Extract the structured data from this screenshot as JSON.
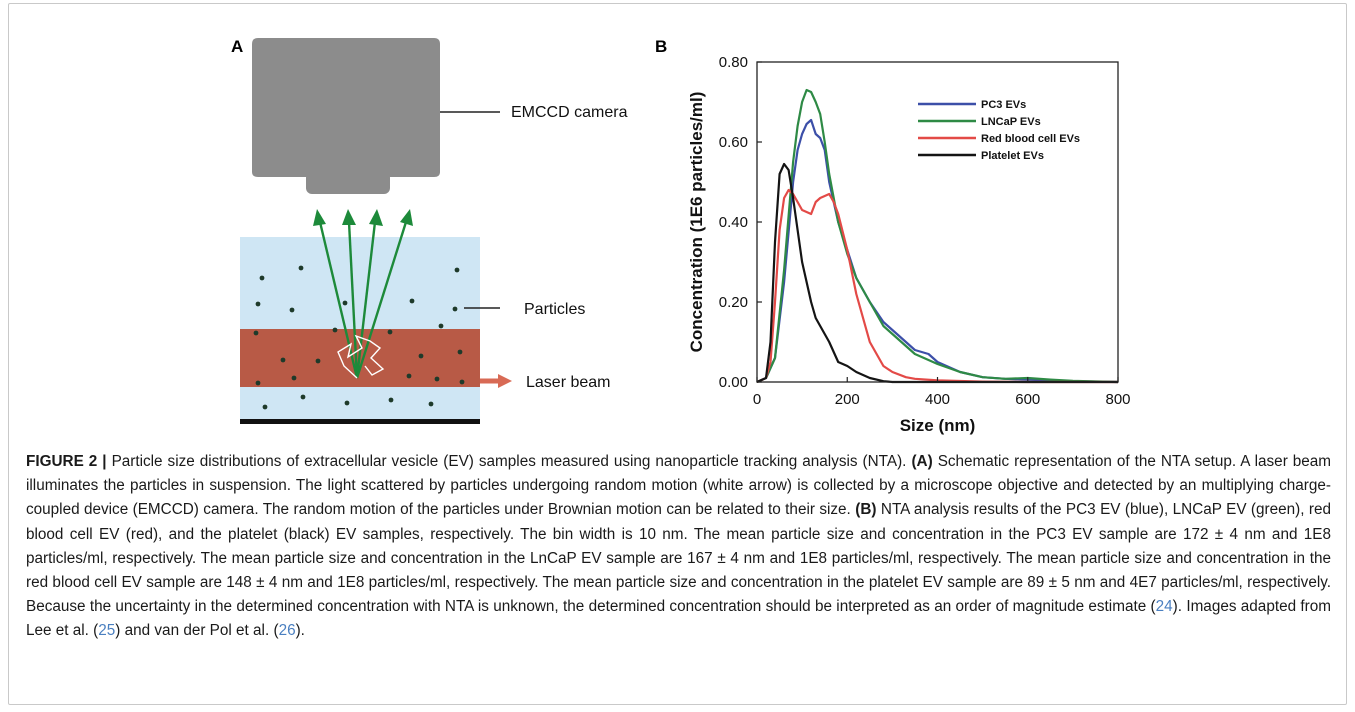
{
  "panel_a": {
    "label": "A",
    "camera_label": "EMCCD camera",
    "particles_label": "Particles",
    "laser_label": "Laser beam",
    "colors": {
      "medium": "#cfe6f4",
      "beam": "#b85a46",
      "arrow": "#1d8a3a",
      "camera": "#8c8c8c",
      "laser_arrow": "#d86a55"
    }
  },
  "panel_b": {
    "label": "B"
  },
  "chart_data": {
    "type": "line",
    "title": "",
    "xlabel": "Size (nm)",
    "ylabel": "Concentration (1E6 particles/ml)",
    "xlim": [
      0,
      800
    ],
    "ylim": [
      0,
      0.8
    ],
    "xticks": [
      "0",
      "200",
      "400",
      "600",
      "800"
    ],
    "yticks": [
      "0.00",
      "0.20",
      "0.40",
      "0.60",
      "0.80"
    ],
    "legend": "top-right",
    "series": [
      {
        "name": "PC3 EVs",
        "color": "#3c4fa8",
        "x": [
          0,
          20,
          40,
          60,
          80,
          90,
          100,
          110,
          120,
          130,
          140,
          150,
          160,
          180,
          200,
          220,
          250,
          280,
          300,
          330,
          350,
          380,
          400,
          450,
          500,
          550,
          600,
          650,
          700,
          800
        ],
        "y": [
          0,
          0.01,
          0.06,
          0.25,
          0.5,
          0.58,
          0.62,
          0.645,
          0.655,
          0.62,
          0.61,
          0.58,
          0.5,
          0.4,
          0.33,
          0.26,
          0.2,
          0.15,
          0.13,
          0.1,
          0.08,
          0.07,
          0.05,
          0.025,
          0.012,
          0.008,
          0.006,
          0.004,
          0.002,
          0
        ]
      },
      {
        "name": "LNCaP EVs",
        "color": "#2e8a45",
        "x": [
          0,
          20,
          40,
          60,
          80,
          90,
          100,
          110,
          120,
          130,
          140,
          150,
          160,
          180,
          200,
          220,
          250,
          280,
          300,
          330,
          350,
          380,
          400,
          450,
          500,
          550,
          600,
          650,
          700,
          800
        ],
        "y": [
          0,
          0.01,
          0.06,
          0.28,
          0.55,
          0.64,
          0.7,
          0.73,
          0.725,
          0.7,
          0.67,
          0.6,
          0.52,
          0.4,
          0.32,
          0.26,
          0.2,
          0.14,
          0.12,
          0.09,
          0.07,
          0.055,
          0.045,
          0.025,
          0.012,
          0.008,
          0.01,
          0.006,
          0.003,
          0
        ]
      },
      {
        "name": "Red blood cell EVs",
        "color": "#e34a47",
        "x": [
          0,
          20,
          30,
          40,
          50,
          60,
          70,
          80,
          100,
          120,
          130,
          140,
          160,
          170,
          180,
          200,
          220,
          250,
          280,
          300,
          330,
          350,
          400,
          500,
          600,
          800
        ],
        "y": [
          0,
          0.01,
          0.05,
          0.2,
          0.38,
          0.46,
          0.48,
          0.47,
          0.43,
          0.42,
          0.45,
          0.46,
          0.47,
          0.45,
          0.42,
          0.33,
          0.22,
          0.1,
          0.04,
          0.025,
          0.012,
          0.008,
          0.004,
          0.001,
          0,
          0
        ]
      },
      {
        "name": "Platelet EVs",
        "color": "#141414",
        "x": [
          0,
          20,
          30,
          40,
          50,
          60,
          70,
          80,
          90,
          100,
          110,
          120,
          130,
          140,
          160,
          180,
          200,
          220,
          250,
          280,
          300,
          800
        ],
        "y": [
          0,
          0.01,
          0.1,
          0.35,
          0.52,
          0.545,
          0.53,
          0.46,
          0.38,
          0.3,
          0.25,
          0.2,
          0.16,
          0.14,
          0.1,
          0.05,
          0.04,
          0.025,
          0.01,
          0.002,
          0,
          0
        ]
      }
    ]
  },
  "caption": {
    "figure_label": "FIGURE 2 |",
    "p1": "Particle size distributions of extracellular vesicle (EV) samples measured using nanoparticle tracking analysis (NTA).",
    "a_label": "(A)",
    "p2": "Schematic representation of the NTA setup. A laser beam illuminates the particles in suspension. The light scattered by particles undergoing random motion (white arrow) is collected by a microscope objective and detected by an multiplying charge-coupled device (EMCCD) camera. The random motion of the particles under Brownian motion can be related to their size.",
    "b_label": "(B)",
    "p3": "NTA analysis results of the PC3 EV (blue), LNCaP EV (green), red blood cell EV (red), and the platelet (black) EV samples, respectively. The bin width is 10 nm. The mean particle size and concentration in the PC3 EV sample are 172 ± 4 nm and 1E8 particles/ml, respectively. The mean particle size and concentration in the LnCaP EV sample are 167 ± 4 nm and 1E8 particles/ml, respectively. The mean particle size and concentration in the red blood cell EV sample are 148 ± 4 nm and 1E8 particles/ml, respectively. The mean particle size and concentration in the platelet EV sample are 89 ± 5 nm and 4E7 particles/ml, respectively. Because the uncertainty in the determined concentration with NTA is unknown, the determined concentration should be interpreted as an order of magnitude estimate (",
    "ref24": "24",
    "p4": "). Images adapted from Lee et al. (",
    "ref25": "25",
    "p5": ") and van der Pol et al. (",
    "ref26": "26",
    "p6": ")."
  }
}
